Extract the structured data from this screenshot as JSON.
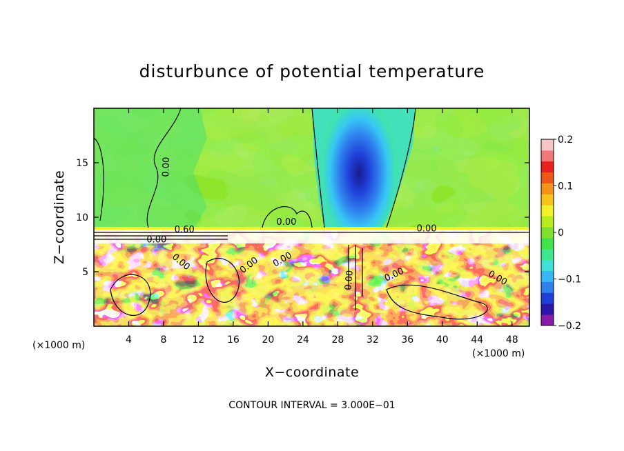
{
  "chart_data": {
    "type": "heatmap",
    "title": "disturbunce of potential temperature",
    "xlabel": "X−coordinate",
    "ylabel": "Z−coordinate",
    "x_unit_label": "(×1000 m)",
    "z_unit_label": "(×1000 m)",
    "footer": "CONTOUR INTERVAL = 3.000E−01",
    "xlim": [
      0,
      50
    ],
    "ylim": [
      0,
      20
    ],
    "x_ticks": [
      4,
      8,
      12,
      16,
      20,
      24,
      28,
      32,
      36,
      40,
      44,
      48
    ],
    "y_ticks": [
      5,
      10,
      15
    ],
    "colorbar": {
      "range": [
        -0.2,
        0.2
      ],
      "ticks": [
        {
          "value": 0.2,
          "label": "0.2"
        },
        {
          "value": 0.1,
          "label": "0.1"
        },
        {
          "value": 0,
          "label": "0"
        },
        {
          "value": -0.1,
          "label": "−0.1"
        },
        {
          "value": -0.2,
          "label": "−0.2"
        }
      ],
      "colors": [
        "#8a1aa8",
        "#2a16a8",
        "#1f3fd8",
        "#2f7fee",
        "#38b6f5",
        "#3fe0d8",
        "#3fe690",
        "#40e34a",
        "#7ee02c",
        "#b8ec1c",
        "#f2f22a",
        "#f7c21c",
        "#f3911a",
        "#ee5618",
        "#e8201e",
        "#f07878",
        "#f7c6c6"
      ]
    },
    "contour_labels": [
      {
        "text": "0.00",
        "x": 8.6,
        "z": 14.6,
        "rotate": -88
      },
      {
        "text": "0.00",
        "x": 22.1,
        "z": 9.3,
        "rotate": 0
      },
      {
        "text": "0.60",
        "x": 10.4,
        "z": 8.6,
        "rotate": 0
      },
      {
        "text": "0.00",
        "x": 7.2,
        "z": 7.7,
        "rotate": 0
      },
      {
        "text": "0.00",
        "x": 9.8,
        "z": 5.7,
        "rotate": 40
      },
      {
        "text": "0.00",
        "x": 18.0,
        "z": 5.4,
        "rotate": -38
      },
      {
        "text": "0.00",
        "x": 21.8,
        "z": 5.9,
        "rotate": -30
      },
      {
        "text": "0.00",
        "x": 29.6,
        "z": 4.2,
        "rotate": -85
      },
      {
        "text": "0.00",
        "x": 34.6,
        "z": 4.5,
        "rotate": -25
      },
      {
        "text": "0.00",
        "x": 46.2,
        "z": 4.2,
        "rotate": 30
      },
      {
        "text": "0.00",
        "x": 38.2,
        "z": 8.7,
        "rotate": 0
      }
    ]
  }
}
